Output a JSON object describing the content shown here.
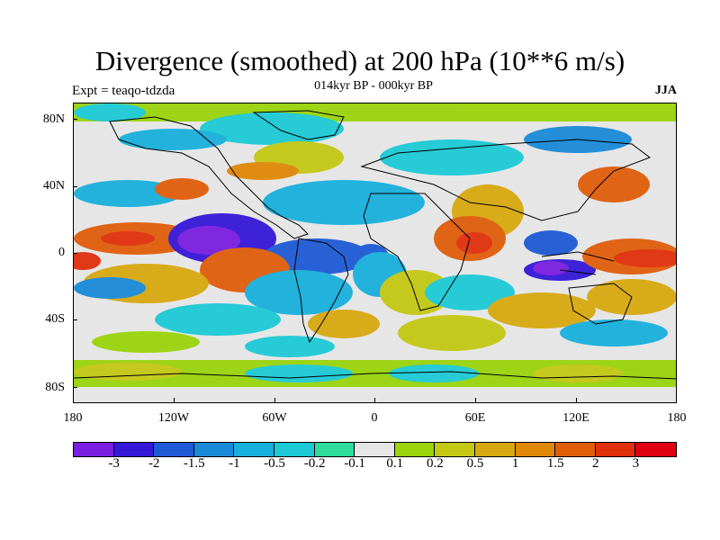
{
  "title": "Divergence (smoothed) at 200 hPa (10**6 m/s)",
  "subtitle_center": "014kyr BP - 000kyr BP",
  "subtitle_left": "Expt = teaqo-tdzda",
  "subtitle_right": "JJA",
  "y_axis_labels": [
    "80N",
    "40N",
    "0",
    "40S",
    "80S"
  ],
  "x_axis_labels": [
    "180",
    "120W",
    "60W",
    "0",
    "60E",
    "120E",
    "180"
  ],
  "colorbar": {
    "colors": [
      "#7a1ee0",
      "#3618d8",
      "#1e5ad6",
      "#1a8ad8",
      "#18b0dc",
      "#1ccad6",
      "#2edc9c",
      "#e6e6e6",
      "#9ad40a",
      "#c4c814",
      "#d8a810",
      "#e08808",
      "#e05e0a",
      "#e0300c",
      "#e00010"
    ],
    "labels": [
      "-3",
      "-2",
      "-1.5",
      "-1",
      "-0.5",
      "-0.2",
      "-0.1",
      "0.1",
      "0.2",
      "0.5",
      "1",
      "1.5",
      "2",
      "3"
    ]
  }
}
